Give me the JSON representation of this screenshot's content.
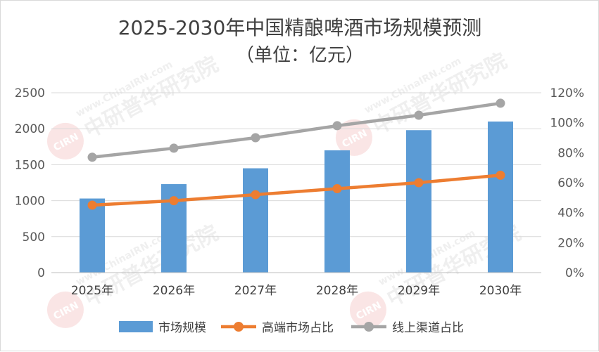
{
  "chart_data": {
    "type": "bar",
    "title": "2025-2030年中国精酿啤酒市场规模预测",
    "subtitle": "（单位：亿元）",
    "categories": [
      "2025年",
      "2026年",
      "2027年",
      "2028年",
      "2029年",
      "2030年"
    ],
    "series": [
      {
        "name": "市场规模",
        "type": "bar",
        "axis": "left",
        "color": "#5b9bd5",
        "values": [
          1030,
          1230,
          1450,
          1700,
          1980,
          2100
        ]
      },
      {
        "name": "高端市场占比",
        "type": "line",
        "axis": "right",
        "color": "#ed7d31",
        "values": [
          0.45,
          0.48,
          0.52,
          0.56,
          0.6,
          0.65
        ]
      },
      {
        "name": "线上渠道占比",
        "type": "line",
        "axis": "right",
        "color": "#a5a5a5",
        "values": [
          0.77,
          0.83,
          0.9,
          0.98,
          1.05,
          1.13
        ]
      }
    ],
    "y_left": {
      "min": 0,
      "max": 2500,
      "step": 500,
      "ticks": [
        "0",
        "500",
        "1000",
        "1500",
        "2000",
        "2500"
      ]
    },
    "y_right": {
      "min": 0,
      "max": 1.2,
      "step": 0.2,
      "ticks": [
        "0%",
        "20%",
        "40%",
        "60%",
        "80%",
        "100%",
        "120%"
      ]
    },
    "grid": true,
    "legend": "bottom"
  },
  "watermark": {
    "brand": "中研普华研究院",
    "url": "www.ChinaIRN.com",
    "logo": "CIRN"
  }
}
